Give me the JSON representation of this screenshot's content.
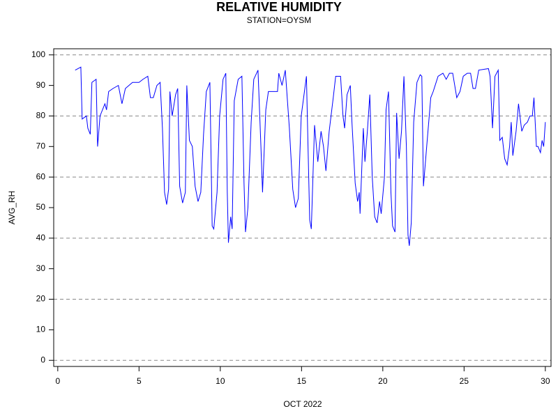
{
  "chart_data": {
    "type": "line",
    "title": "RELATIVE HUMIDITY",
    "subtitle": "STATION=OYSM",
    "x_label": "OCT 2022",
    "y_label": "AVG_RH",
    "color": "#0000ff",
    "x": [
      1.07,
      1.42,
      1.5,
      1.76,
      1.85,
      2.0,
      2.1,
      2.36,
      2.45,
      2.6,
      2.9,
      3.0,
      3.13,
      3.4,
      3.73,
      3.95,
      4.16,
      4.6,
      5.0,
      5.24,
      5.54,
      5.7,
      5.88,
      6.1,
      6.3,
      6.44,
      6.57,
      6.7,
      6.82,
      6.9,
      7.04,
      7.25,
      7.38,
      7.5,
      7.68,
      7.85,
      7.94,
      8.1,
      8.28,
      8.45,
      8.63,
      8.8,
      8.97,
      9.14,
      9.36,
      9.5,
      9.6,
      9.8,
      9.96,
      10.17,
      10.34,
      10.43,
      10.5,
      10.64,
      10.73,
      10.86,
      11.1,
      11.33,
      11.46,
      11.55,
      11.7,
      11.9,
      12.06,
      12.32,
      12.5,
      12.6,
      12.8,
      12.96,
      13.26,
      13.52,
      13.6,
      13.8,
      14.0,
      14.25,
      14.46,
      14.63,
      14.8,
      14.98,
      15.3,
      15.5,
      15.6,
      15.7,
      15.8,
      16.0,
      16.2,
      16.35,
      16.5,
      16.7,
      16.95,
      17.1,
      17.4,
      17.55,
      17.65,
      17.8,
      18.0,
      18.1,
      18.3,
      18.45,
      18.55,
      18.6,
      18.8,
      18.9,
      19.05,
      19.2,
      19.35,
      19.5,
      19.65,
      19.8,
      19.9,
      20.1,
      20.2,
      20.35,
      20.5,
      20.6,
      20.75,
      20.85,
      21.0,
      21.15,
      21.3,
      21.45,
      21.55,
      21.63,
      21.75,
      21.9,
      22.1,
      22.3,
      22.4,
      22.5,
      22.7,
      22.95,
      23.1,
      23.4,
      23.7,
      23.9,
      24.1,
      24.3,
      24.55,
      24.75,
      24.95,
      25.2,
      25.4,
      25.55,
      25.7,
      25.9,
      26.5,
      26.6,
      26.75,
      26.9,
      27.1,
      27.2,
      27.35,
      27.5,
      27.65,
      27.8,
      27.9,
      28.0,
      28.2,
      28.35,
      28.55,
      28.7,
      28.9,
      29.05,
      29.2,
      29.3,
      29.45,
      29.55,
      29.7,
      29.8,
      29.9,
      30.0
    ],
    "values": [
      95,
      96,
      79,
      80,
      76,
      74,
      91,
      92,
      70,
      80,
      84,
      82,
      88,
      89,
      90,
      84,
      89,
      91,
      91,
      92,
      93,
      86,
      86,
      90,
      91,
      76,
      55,
      51,
      56,
      88,
      80,
      87,
      89,
      57,
      51.5,
      55,
      90,
      72,
      70,
      57,
      52,
      55,
      74,
      88,
      91,
      44,
      43,
      55,
      80,
      92,
      94,
      55,
      38.5,
      47,
      43,
      85,
      92,
      93,
      58,
      42,
      50,
      78,
      92,
      95,
      70,
      55,
      82,
      88,
      88,
      88,
      94,
      90,
      95,
      76,
      56,
      50,
      53,
      80,
      93,
      46,
      43,
      60,
      77,
      65,
      75,
      70,
      62,
      75,
      86,
      93,
      93,
      80,
      76,
      87,
      90,
      78,
      58,
      52,
      55,
      48,
      76,
      65,
      75,
      87,
      60,
      47,
      45,
      52,
      48,
      60,
      82,
      88,
      55,
      44,
      42,
      81,
      66,
      75,
      93,
      70,
      41,
      37.5,
      45,
      78,
      91,
      93.5,
      93,
      57,
      70,
      86,
      88,
      93,
      94,
      92,
      94,
      94,
      86,
      88,
      93,
      94,
      94,
      89,
      89,
      95,
      95.5,
      93,
      76,
      93,
      95,
      72,
      73,
      66,
      64,
      70,
      78,
      67,
      75,
      84,
      75,
      77,
      78,
      80,
      80,
      86,
      70,
      70,
      68,
      72,
      70,
      78
    ],
    "xlim": [
      -0.25,
      30.35
    ],
    "ylim": [
      -2,
      102
    ],
    "xticks": [
      0,
      5,
      10,
      15,
      20,
      25,
      30
    ],
    "yticks": [
      0,
      10,
      20,
      30,
      40,
      50,
      60,
      70,
      80,
      90,
      100
    ],
    "ygrid": [
      0,
      20,
      40,
      60,
      80,
      100
    ]
  }
}
